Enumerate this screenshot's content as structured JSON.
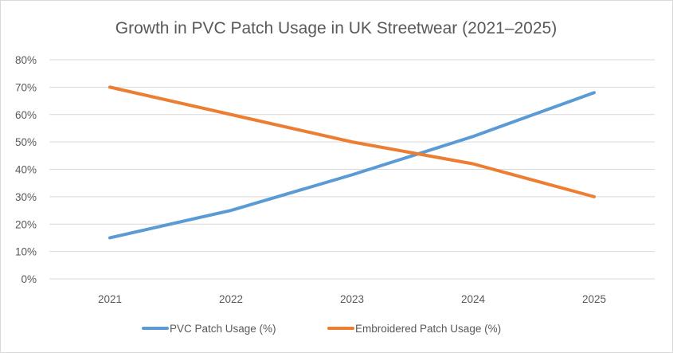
{
  "chart_data": {
    "type": "line",
    "title": "Growth in PVC Patch Usage in UK Streetwear (2021–2025)",
    "xlabel": "",
    "ylabel": "",
    "categories": [
      "2021",
      "2022",
      "2023",
      "2024",
      "2025"
    ],
    "ylim": [
      0,
      80
    ],
    "yticks": [
      0,
      10,
      20,
      30,
      40,
      50,
      60,
      70,
      80
    ],
    "ytick_labels": [
      "0%",
      "10%",
      "20%",
      "30%",
      "40%",
      "50%",
      "60%",
      "70%",
      "80%"
    ],
    "grid": true,
    "legend_position": "bottom",
    "series": [
      {
        "name": "PVC Patch Usage (%)",
        "color": "#5b9bd5",
        "values": [
          15,
          25,
          38,
          52,
          68
        ]
      },
      {
        "name": "Embroidered Patch Usage (%)",
        "color": "#ed7d31",
        "values": [
          70,
          60,
          50,
          42,
          30
        ]
      }
    ]
  }
}
